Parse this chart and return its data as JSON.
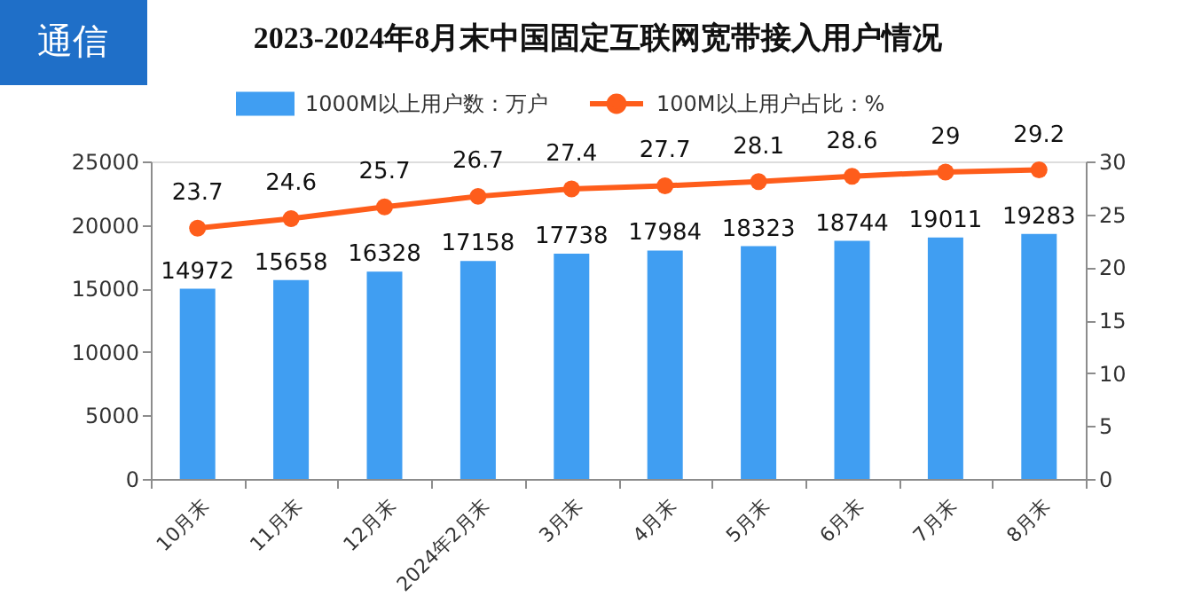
{
  "chart_data": {
    "type": "bar",
    "title": "2023-2024年8月末中国固定互联网宽带接入用户情况",
    "annotations": [
      "通信"
    ],
    "categories": [
      "10月末",
      "11月末",
      "12月末",
      "2024年2月末",
      "3月末",
      "4月末",
      "5月末",
      "6月末",
      "7月末",
      "8月末"
    ],
    "series": [
      {
        "name": "1000M以上用户数：万户",
        "color": "#409ef2",
        "values": [
          14972,
          15658,
          16328,
          17158,
          17738,
          17984,
          18323,
          18744,
          19011,
          19283
        ]
      },
      {
        "name": "100M以上用户占比：%",
        "type": "line",
        "axis": "y2",
        "color": "#fe5d1b",
        "values": [
          23.7,
          24.6,
          25.7,
          26.7,
          27.4,
          27.7,
          28.1,
          28.6,
          29,
          29.2
        ]
      }
    ],
    "ylim": [
      0,
      25000
    ],
    "yticks": [
      0,
      5000,
      10000,
      15000,
      20000,
      25000
    ],
    "y2lim": [
      0,
      30
    ],
    "y2ticks": [
      0,
      5,
      10,
      15,
      20,
      25,
      30
    ],
    "marker": "circle",
    "line_style": "solid",
    "data_labels": true,
    "legend": "top"
  }
}
